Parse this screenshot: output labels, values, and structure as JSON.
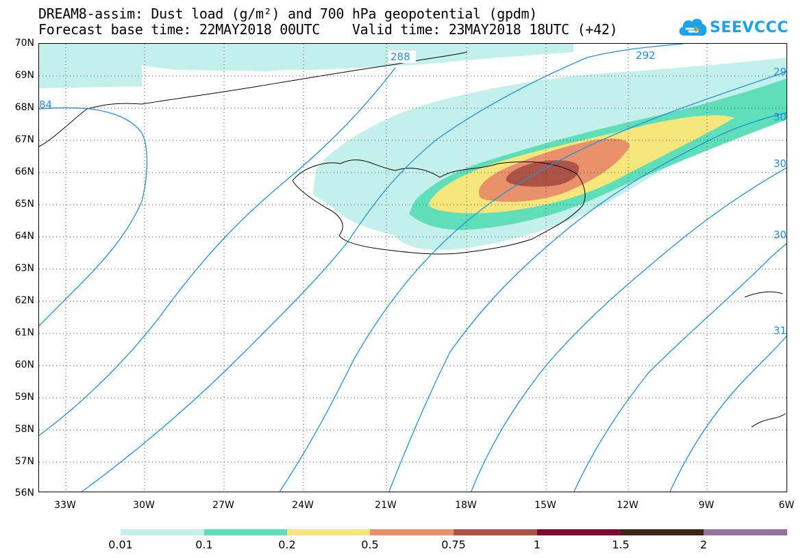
{
  "title": {
    "line1": "DREAM8-assim: Dust load (g/m²) and 700 hPa geopotential (gpdm)",
    "line2": "Forecast base time: 22MAY2018 00UTC    Valid time: 23MAY2018 18UTC (+42)"
  },
  "logo": {
    "text": "SEEVCCC",
    "icon": "cloud-logo-icon",
    "color": "#1aa3e8"
  },
  "axes": {
    "lat_labels": [
      "70N",
      "69N",
      "68N",
      "67N",
      "66N",
      "65N",
      "64N",
      "63N",
      "62N",
      "61N",
      "60N",
      "59N",
      "58N",
      "57N",
      "56N"
    ],
    "lon_labels": [
      "33W",
      "30W",
      "27W",
      "24W",
      "21W",
      "18W",
      "15W",
      "12W",
      "9W",
      "6W"
    ]
  },
  "contour_labels": [
    "288",
    "292",
    "84",
    "29",
    "30",
    "30",
    "30",
    "31"
  ],
  "colorbar": {
    "labels": [
      "0.01",
      "0.1",
      "0.2",
      "0.5",
      "0.75",
      "1",
      "1.5",
      "2"
    ],
    "colors": [
      "#c3f0ea",
      "#5fdfb9",
      "#f7e67c",
      "#e8916a",
      "#ad5346",
      "#820a32",
      "#3c2416",
      "#93739f"
    ]
  },
  "colors": {
    "contour": "#1e90dd",
    "coast": "#000000"
  }
}
